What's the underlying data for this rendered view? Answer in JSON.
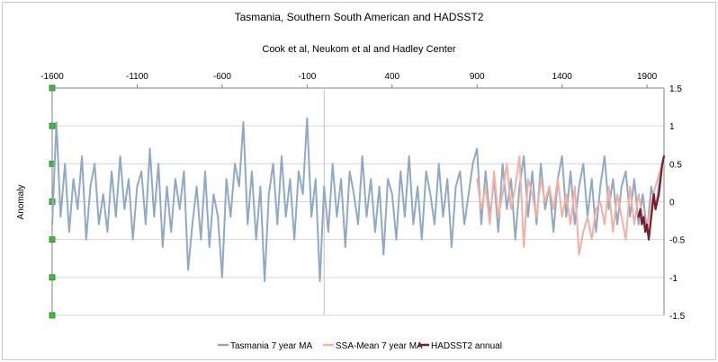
{
  "chart_data": {
    "type": "line",
    "title": "Tasmania, Southern South American and HADSST2",
    "subtitle": "Cook et al, Neukom et al and Hadley Center",
    "ylabel": "Anomaly",
    "xlim": [
      -1600,
      2000
    ],
    "ylim": [
      -1.5,
      1.5
    ],
    "x_ticks": [
      -1600,
      -1100,
      -600,
      -100,
      400,
      900,
      1400,
      1900
    ],
    "y_ticks": [
      -1.5,
      -1,
      -0.5,
      0,
      0.5,
      1,
      1.5
    ],
    "x_tick_labels": [
      "-1600",
      "-1100",
      "-600",
      "-100",
      "400",
      "900",
      "1400",
      "1900"
    ],
    "y_tick_labels": [
      "-1.5",
      "-1",
      "-0.5",
      "0",
      "0.5",
      "1",
      "1.5"
    ],
    "legend_position": "bottom",
    "grid": true,
    "series": [
      {
        "name": "Tasmania 7 year MA",
        "color": "#8fa9c9",
        "x": [
          -1600,
          -1575,
          -1550,
          -1525,
          -1500,
          -1475,
          -1450,
          -1425,
          -1400,
          -1375,
          -1350,
          -1325,
          -1300,
          -1275,
          -1250,
          -1225,
          -1200,
          -1175,
          -1150,
          -1125,
          -1100,
          -1075,
          -1050,
          -1025,
          -1000,
          -975,
          -950,
          -925,
          -900,
          -875,
          -850,
          -825,
          -800,
          -775,
          -750,
          -725,
          -700,
          -675,
          -650,
          -625,
          -600,
          -575,
          -550,
          -525,
          -500,
          -475,
          -450,
          -425,
          -400,
          -375,
          -350,
          -325,
          -300,
          -275,
          -250,
          -225,
          -200,
          -175,
          -150,
          -125,
          -100,
          -75,
          -50,
          -25,
          0,
          25,
          50,
          75,
          100,
          125,
          150,
          175,
          200,
          225,
          250,
          275,
          300,
          325,
          350,
          375,
          400,
          425,
          450,
          475,
          500,
          525,
          550,
          575,
          600,
          625,
          650,
          675,
          700,
          725,
          750,
          775,
          800,
          825,
          850,
          875,
          900,
          925,
          950,
          975,
          1000,
          1025,
          1050,
          1075,
          1100,
          1125,
          1150,
          1175,
          1200,
          1225,
          1250,
          1275,
          1300,
          1325,
          1350,
          1375,
          1400,
          1425,
          1450,
          1475,
          1500,
          1525,
          1550,
          1575,
          1600,
          1625,
          1650,
          1675,
          1700,
          1725,
          1750,
          1775,
          1800,
          1825,
          1850,
          1875,
          1900,
          1925,
          1950,
          1975,
          1990
        ],
        "values": [
          -0.3,
          1.05,
          -0.2,
          0.5,
          -0.4,
          0.3,
          -0.1,
          0.6,
          -0.5,
          0.2,
          0.5,
          -0.3,
          0.1,
          -0.4,
          0.4,
          -0.2,
          0.6,
          -0.1,
          0.3,
          -0.5,
          0.2,
          0.4,
          -0.3,
          0.7,
          -0.2,
          0.5,
          -0.6,
          0.2,
          -0.4,
          0.3,
          -0.1,
          0.4,
          -0.9,
          -0.3,
          0.2,
          -0.5,
          0.4,
          -0.6,
          0.1,
          -0.2,
          -1.0,
          0.3,
          -0.2,
          0.5,
          0.2,
          1.05,
          -0.3,
          0.4,
          -0.5,
          0.2,
          -1.05,
          0.1,
          0.5,
          -0.3,
          0.6,
          -0.2,
          0.3,
          -0.5,
          0.4,
          0.1,
          1.1,
          -0.2,
          0.3,
          -1.05,
          0.2,
          -0.4,
          0.5,
          -0.2,
          0.3,
          -0.6,
          0.4,
          0.1,
          -0.3,
          0.6,
          -0.2,
          0.3,
          -0.4,
          0.2,
          -0.7,
          0.3,
          0.1,
          -0.5,
          0.4,
          -0.2,
          0.6,
          -0.3,
          0.2,
          -0.5,
          0.4,
          0.1,
          -0.3,
          0.5,
          -0.2,
          0.3,
          -0.6,
          0.2,
          0.4,
          -0.3,
          0.1,
          0.5,
          0.7,
          -0.3,
          0.4,
          -0.2,
          0.3,
          -0.4,
          0.5,
          -0.1,
          0.3,
          -0.5,
          0.2,
          0.6,
          -0.2,
          0.4,
          -0.3,
          0.5,
          -0.1,
          0.2,
          -0.4,
          0.3,
          0.6,
          -0.2,
          0.4,
          -0.3,
          0.2,
          0.5,
          -0.2,
          0.3,
          -0.4,
          0.2,
          0.6,
          -0.1,
          0.3,
          -0.3,
          0.2,
          0.4,
          -0.2,
          0.3,
          -0.3,
          0.1,
          -0.4,
          0.2,
          -0.1,
          0.3,
          0.5
        ]
      },
      {
        "name": "SSA-Mean 7 year MA",
        "color": "#f4b0a0",
        "x": [
          900,
          925,
          950,
          975,
          1000,
          1025,
          1050,
          1075,
          1100,
          1125,
          1150,
          1175,
          1200,
          1225,
          1250,
          1275,
          1300,
          1325,
          1350,
          1375,
          1400,
          1425,
          1450,
          1475,
          1500,
          1525,
          1550,
          1575,
          1600,
          1625,
          1650,
          1675,
          1700,
          1725,
          1750,
          1775,
          1800,
          1825,
          1850,
          1875,
          1900,
          1925,
          1950,
          1975,
          1990
        ],
        "values": [
          0.3,
          -0.1,
          0.2,
          -0.3,
          0.4,
          -0.2,
          0.1,
          0.5,
          -0.1,
          0.2,
          0.6,
          -0.6,
          0.3,
          0.1,
          -0.2,
          0.3,
          0.0,
          0.2,
          -0.1,
          0.3,
          -0.2,
          0.1,
          -0.3,
          0.2,
          -0.7,
          -0.4,
          -0.2,
          -0.5,
          -0.1,
          0.0,
          -0.3,
          0.2,
          -0.4,
          0.1,
          -0.2,
          -0.5,
          0.2,
          -0.3,
          0.1,
          -0.2,
          -0.4,
          0.0,
          0.2,
          0.4,
          0.5
        ]
      },
      {
        "name": "HADSST2 annual",
        "color": "#7a1a2a",
        "x": [
          1850,
          1860,
          1870,
          1880,
          1890,
          1900,
          1910,
          1920,
          1930,
          1940,
          1950,
          1960,
          1970,
          1980,
          1990,
          2000
        ],
        "values": [
          -0.2,
          -0.1,
          -0.3,
          -0.2,
          -0.4,
          -0.3,
          -0.5,
          -0.3,
          -0.1,
          0.1,
          -0.1,
          0.0,
          0.1,
          0.3,
          0.5,
          0.6
        ]
      }
    ]
  }
}
